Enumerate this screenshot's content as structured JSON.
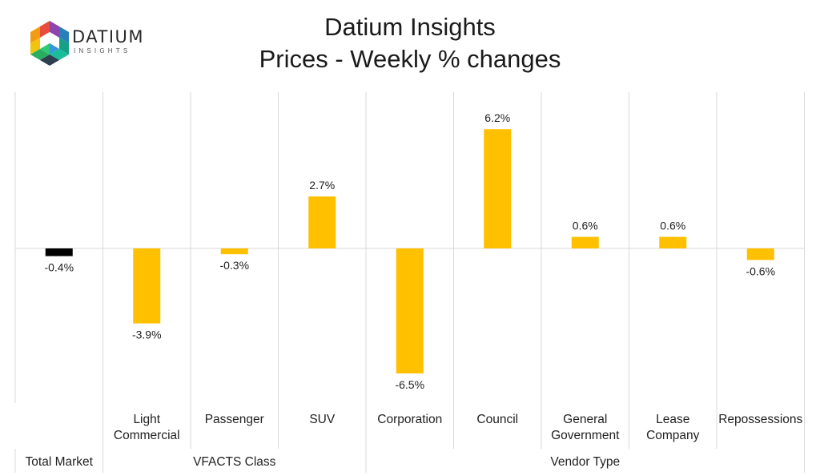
{
  "logo": {
    "wordmark": "DATIUM",
    "sub": "INSIGHTS"
  },
  "title": {
    "line1": "Datium Insights",
    "line2": "Prices - Weekly % changes"
  },
  "colors": {
    "total_bar": "#000000",
    "segment_bar": "#FFC000",
    "grid": "#d9d9d9"
  },
  "chart_data": {
    "type": "bar",
    "title": "Datium Insights Prices - Weekly % changes",
    "categories": [
      "",
      "Light Commercial",
      "Passenger",
      "SUV",
      "Corporation",
      "Council",
      "General Government",
      "Lease Company",
      "Repossessions"
    ],
    "category_lines": [
      [],
      [
        "Light",
        "Commercial"
      ],
      [
        "Passenger"
      ],
      [
        "SUV"
      ],
      [
        "Corporation"
      ],
      [
        "Council"
      ],
      [
        "General",
        "Government"
      ],
      [
        "Lease",
        "Company"
      ],
      [
        "Repossessions"
      ]
    ],
    "values": [
      -0.4,
      -3.9,
      -0.3,
      2.7,
      -6.5,
      6.2,
      0.6,
      0.6,
      -0.6
    ],
    "data_labels": [
      "-0.4%",
      "-3.9%",
      "-0.3%",
      "2.7%",
      "-6.5%",
      "6.2%",
      "0.6%",
      "0.6%",
      "-0.6%"
    ],
    "groups": [
      {
        "label": "Total Market",
        "start": 0,
        "end": 0
      },
      {
        "label": "VFACTS Class",
        "start": 1,
        "end": 3
      },
      {
        "label": "Vendor Type",
        "start": 4,
        "end": 8
      }
    ],
    "ylim": [
      -8.2,
      8.2
    ],
    "xlabel": "",
    "ylabel": "",
    "grid": false,
    "legend": "none"
  }
}
